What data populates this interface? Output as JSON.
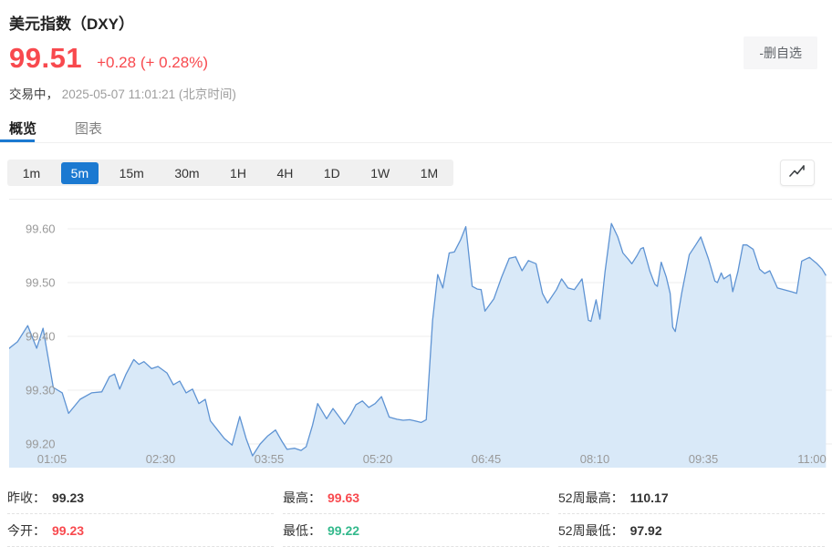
{
  "header": {
    "title": "美元指数（DXY）",
    "price": "99.51",
    "change": "+0.28 (+ 0.28%)",
    "status_label": "交易中，",
    "status_time": "2025-05-07 11:01:21 (北京时间)",
    "remove_watchlist_label": "-删自选"
  },
  "tabs": [
    {
      "label": "概览",
      "active": true
    },
    {
      "label": "图表",
      "active": false
    }
  ],
  "timeframes": {
    "items": [
      {
        "label": "1m",
        "active": false
      },
      {
        "label": "5m",
        "active": true
      },
      {
        "label": "15m",
        "active": false
      },
      {
        "label": "30m",
        "active": false
      },
      {
        "label": "1H",
        "active": false
      },
      {
        "label": "4H",
        "active": false
      },
      {
        "label": "1D",
        "active": false
      },
      {
        "label": "1W",
        "active": false
      },
      {
        "label": "1M",
        "active": false
      }
    ]
  },
  "colors": {
    "up_down_red": "#f8494e",
    "green": "#33b98c",
    "accent_blue": "#1b79d1",
    "chart_line": "#5e93d3",
    "chart_fill": "#d9e9f8",
    "axis_text": "#999999",
    "gridline": "#ececec"
  },
  "chart_data": {
    "type": "area",
    "x_unit": "minutes_after_midnight",
    "ylim": [
      99.13,
      99.66
    ],
    "grid": true,
    "y_ticks": [
      99.6,
      99.5,
      99.4,
      99.3,
      99.2
    ],
    "x_ticks": [
      {
        "t": 65,
        "label": "01:05"
      },
      {
        "t": 150,
        "label": "02:30"
      },
      {
        "t": 235,
        "label": "03:55"
      },
      {
        "t": 320,
        "label": "05:20"
      },
      {
        "t": 405,
        "label": "06:45"
      },
      {
        "t": 490,
        "label": "08:10"
      },
      {
        "t": 575,
        "label": "09:35"
      },
      {
        "t": 660,
        "label": "11:00"
      }
    ],
    "points": [
      [
        30,
        99.375
      ],
      [
        38,
        99.39
      ],
      [
        46,
        99.42
      ],
      [
        53,
        99.378
      ],
      [
        58,
        99.415
      ],
      [
        66,
        99.305
      ],
      [
        73,
        99.295
      ],
      [
        78,
        99.257
      ],
      [
        87,
        99.283
      ],
      [
        96,
        99.295
      ],
      [
        104,
        99.297
      ],
      [
        110,
        99.325
      ],
      [
        114,
        99.33
      ],
      [
        118,
        99.302
      ],
      [
        123,
        99.33
      ],
      [
        129,
        99.357
      ],
      [
        133,
        99.348
      ],
      [
        137,
        99.353
      ],
      [
        143,
        99.34
      ],
      [
        148,
        99.344
      ],
      [
        155,
        99.332
      ],
      [
        160,
        99.31
      ],
      [
        165,
        99.317
      ],
      [
        170,
        99.295
      ],
      [
        175,
        99.302
      ],
      [
        180,
        99.275
      ],
      [
        185,
        99.283
      ],
      [
        189,
        99.243
      ],
      [
        195,
        99.225
      ],
      [
        200,
        99.21
      ],
      [
        206,
        99.198
      ],
      [
        212,
        99.251
      ],
      [
        217,
        99.21
      ],
      [
        222,
        99.178
      ],
      [
        228,
        99.2
      ],
      [
        234,
        99.215
      ],
      [
        240,
        99.226
      ],
      [
        245,
        99.205
      ],
      [
        249,
        99.19
      ],
      [
        255,
        99.192
      ],
      [
        260,
        99.188
      ],
      [
        264,
        99.195
      ],
      [
        269,
        99.235
      ],
      [
        273,
        99.275
      ],
      [
        280,
        99.247
      ],
      [
        285,
        99.266
      ],
      [
        290,
        99.25
      ],
      [
        294,
        99.237
      ],
      [
        299,
        99.255
      ],
      [
        303,
        99.273
      ],
      [
        308,
        99.28
      ],
      [
        313,
        99.268
      ],
      [
        318,
        99.275
      ],
      [
        323,
        99.288
      ],
      [
        329,
        99.25
      ],
      [
        335,
        99.246
      ],
      [
        340,
        99.244
      ],
      [
        345,
        99.245
      ],
      [
        349,
        99.243
      ],
      [
        354,
        99.24
      ],
      [
        358,
        99.245
      ],
      [
        363,
        99.43
      ],
      [
        367,
        99.515
      ],
      [
        371,
        99.49
      ],
      [
        376,
        99.555
      ],
      [
        380,
        99.557
      ],
      [
        385,
        99.58
      ],
      [
        389,
        99.604
      ],
      [
        394,
        99.493
      ],
      [
        398,
        99.488
      ],
      [
        401,
        99.487
      ],
      [
        404,
        99.447
      ],
      [
        411,
        99.47
      ],
      [
        417,
        99.51
      ],
      [
        423,
        99.545
      ],
      [
        428,
        99.548
      ],
      [
        433,
        99.522
      ],
      [
        438,
        99.541
      ],
      [
        444,
        99.535
      ],
      [
        449,
        99.48
      ],
      [
        453,
        99.462
      ],
      [
        460,
        99.487
      ],
      [
        464,
        99.507
      ],
      [
        469,
        99.49
      ],
      [
        474,
        99.487
      ],
      [
        480,
        99.507
      ],
      [
        485,
        99.43
      ],
      [
        487,
        99.428
      ],
      [
        491,
        99.468
      ],
      [
        494,
        99.432
      ],
      [
        498,
        99.52
      ],
      [
        503,
        99.61
      ],
      [
        508,
        99.585
      ],
      [
        512,
        99.555
      ],
      [
        516,
        99.544
      ],
      [
        519,
        99.535
      ],
      [
        523,
        99.55
      ],
      [
        526,
        99.563
      ],
      [
        528,
        99.565
      ],
      [
        533,
        99.522
      ],
      [
        537,
        99.497
      ],
      [
        539,
        99.493
      ],
      [
        542,
        99.538
      ],
      [
        546,
        99.51
      ],
      [
        549,
        99.48
      ],
      [
        551,
        99.417
      ],
      [
        553,
        99.409
      ],
      [
        558,
        99.48
      ],
      [
        564,
        99.552
      ],
      [
        569,
        99.57
      ],
      [
        573,
        99.585
      ],
      [
        579,
        99.544
      ],
      [
        584,
        99.503
      ],
      [
        586,
        99.5
      ],
      [
        589,
        99.518
      ],
      [
        591,
        99.507
      ],
      [
        596,
        99.515
      ],
      [
        598,
        99.483
      ],
      [
        602,
        99.52
      ],
      [
        606,
        99.57
      ],
      [
        609,
        99.57
      ],
      [
        614,
        99.562
      ],
      [
        619,
        99.525
      ],
      [
        623,
        99.517
      ],
      [
        627,
        99.522
      ],
      [
        633,
        99.49
      ],
      [
        638,
        99.487
      ],
      [
        644,
        99.483
      ],
      [
        648,
        99.48
      ],
      [
        652,
        99.54
      ],
      [
        658,
        99.547
      ],
      [
        664,
        99.535
      ],
      [
        668,
        99.525
      ],
      [
        671,
        99.513
      ]
    ]
  },
  "stats": {
    "cells": [
      {
        "key": "prev-close",
        "label": "昨收：",
        "value": "99.23",
        "color": "dark"
      },
      {
        "key": "high",
        "label": "最高：",
        "value": "99.63",
        "color": "red"
      },
      {
        "key": "wk52-high",
        "label": "52周最高：",
        "value": "110.17",
        "color": "dark"
      },
      {
        "key": "open",
        "label": "今开：",
        "value": "99.23",
        "color": "red"
      },
      {
        "key": "low",
        "label": "最低：",
        "value": "99.22",
        "color": "green"
      },
      {
        "key": "wk52-low",
        "label": "52周最低：",
        "value": "97.92",
        "color": "dark"
      }
    ]
  }
}
